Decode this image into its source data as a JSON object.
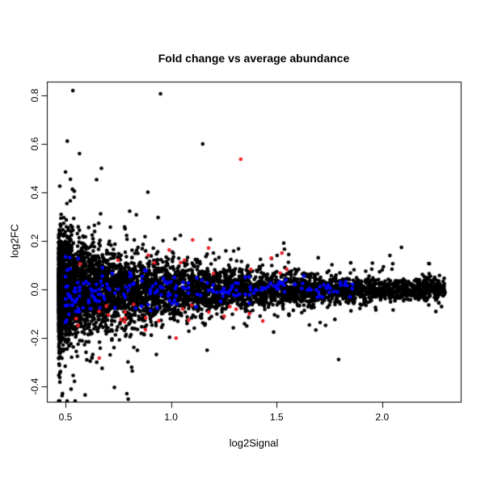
{
  "page": {
    "background": "#ffffff"
  },
  "chart_data": {
    "type": "scatter",
    "title": "Fold change vs average abundance",
    "xlabel": "log2Signal",
    "ylabel": "log2FC",
    "xlim": [
      0.412,
      2.372
    ],
    "ylim": [
      -0.463,
      0.857
    ],
    "grid": false,
    "legend": "none",
    "xticks": [
      0.5,
      1.0,
      1.5,
      2.0
    ],
    "xtick_labels": [
      "0.5",
      "1.0",
      "1.5",
      "2.0"
    ],
    "yticks": [
      -0.4,
      -0.2,
      0.0,
      0.2,
      0.4,
      0.6,
      0.8
    ],
    "ytick_labels": [
      "-0.4",
      "-0.2",
      "0.0",
      "0.2",
      "0.4",
      "0.6",
      "0.8"
    ],
    "point_radius": 2.3,
    "colors": {
      "points": "#000000",
      "highlight_blue": "#0000ff",
      "highlight_red": "#ed1c24",
      "axis": "#000000"
    },
    "series": [
      {
        "name": "probes-black",
        "kind": "cloud",
        "color": "#000000",
        "count": 5500,
        "seed": 42,
        "x_min": 0.468,
        "x_span": 1.83,
        "x_pow": 2.2,
        "sd_base": 0.012,
        "sd_amp": 0.092,
        "sd_decay": 1.3,
        "tail_prob": 0.08,
        "tail_mult": 2.2,
        "tail2_prob": 0.015,
        "tail2_mult": 3.5,
        "y_clamp": [
          -0.46,
          0.82
        ]
      },
      {
        "name": "highlight-blue",
        "kind": "band",
        "color": "#0000ff",
        "count": 210,
        "seed": 7,
        "x_min": 0.5,
        "x_span": 1.42,
        "x_pow": 1.8,
        "sd_base": 0.009,
        "sd_amp": 0.055,
        "sd_decay": 1.3,
        "y_clamp": [
          -0.135,
          0.135
        ]
      },
      {
        "name": "highlight-red",
        "kind": "flagged",
        "color": "#ed1c24",
        "count": 38,
        "seed": 99,
        "x_min": 0.55,
        "x_span": 1.0,
        "x_pow": 1.2,
        "mag_base": 0.06,
        "mag_sd": 0.095,
        "neg_frac": 0.55,
        "mag_clamp": [
          0.05,
          0.42
        ]
      }
    ],
    "featured_points": [
      {
        "x": 0.95,
        "y": 0.807,
        "color": "#000000"
      },
      {
        "x": 1.15,
        "y": 0.6,
        "color": "#000000"
      },
      {
        "x": 1.33,
        "y": 0.537,
        "color": "#ed1c24"
      },
      {
        "x": 0.66,
        "y": -0.283,
        "color": "#ed1c24"
      }
    ]
  }
}
